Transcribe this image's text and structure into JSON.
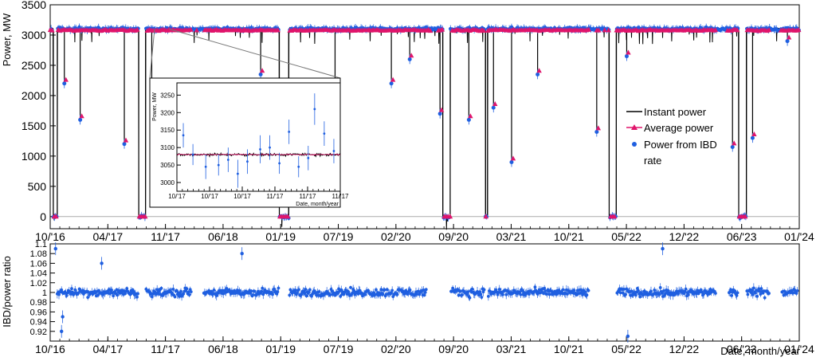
{
  "colors": {
    "instant": "#000000",
    "average": "#e0156b",
    "ibd": "#1f5fe0",
    "frame": "#000000",
    "zero_line": "#aaaaaa"
  },
  "chart_data": [
    {
      "type": "line",
      "name": "power-panel",
      "ylabel": "Power, MW",
      "xlim": [
        "2016-10-01",
        "2024-01-01"
      ],
      "ylim": [
        -200,
        3500
      ],
      "x_tick_labels": [
        "10/'16",
        "04/'17",
        "11/'17",
        "06/'18",
        "01/'19",
        "07/'19",
        "02/'20",
        "09/'20",
        "03/'21",
        "10/'21",
        "05/'22",
        "12/'22",
        "06/'23",
        "01/'24"
      ],
      "y_tick_labels": [
        "0",
        "500",
        "1000",
        "1500",
        "2000",
        "2500",
        "3000",
        "3500"
      ],
      "legend_position": "right-center",
      "series": [
        {
          "name": "Instant power",
          "key": "instant",
          "style": "line"
        },
        {
          "name": "Average power",
          "key": "average",
          "style": "triangle-markers"
        },
        {
          "name": "Power from IBD rate",
          "key": "ibd",
          "style": "points-with-errorbars"
        }
      ],
      "baseline_mw": 3100,
      "outages": [
        {
          "start": "2016-10-12",
          "end": "2016-10-26",
          "level_mw": 0
        },
        {
          "start": "2017-08-10",
          "end": "2017-09-03",
          "level_mw": 0
        },
        {
          "start": "2018-12-20",
          "end": "2019-01-22",
          "level_mw": 0
        },
        {
          "start": "2020-07-20",
          "end": "2020-08-15",
          "level_mw": 0
        },
        {
          "start": "2020-12-18",
          "end": "2020-12-25",
          "level_mw": 0
        },
        {
          "start": "2022-02-28",
          "end": "2022-03-25",
          "level_mw": 0
        },
        {
          "start": "2023-06-01",
          "end": "2023-06-28",
          "level_mw": 0
        }
      ],
      "dips": [
        {
          "date": "2016-11-20",
          "mw": 2200
        },
        {
          "date": "2017-01-15",
          "mw": 1600
        },
        {
          "date": "2017-06-20",
          "mw": 1200
        },
        {
          "date": "2017-09-25",
          "mw": 900
        },
        {
          "date": "2018-10-15",
          "mw": 2350
        },
        {
          "date": "2019-07-05",
          "mw": 2100
        },
        {
          "date": "2020-01-20",
          "mw": 2200
        },
        {
          "date": "2020-03-25",
          "mw": 2600
        },
        {
          "date": "2020-07-10",
          "mw": 1700
        },
        {
          "date": "2020-10-20",
          "mw": 1600
        },
        {
          "date": "2021-01-15",
          "mw": 1800
        },
        {
          "date": "2021-03-20",
          "mw": 900
        },
        {
          "date": "2021-06-20",
          "mw": 2350
        },
        {
          "date": "2022-01-15",
          "mw": 1400
        },
        {
          "date": "2022-05-01",
          "mw": 2650
        },
        {
          "date": "2023-05-10",
          "mw": 1150
        },
        {
          "date": "2023-07-20",
          "mw": 1300
        },
        {
          "date": "2023-11-20",
          "mw": 2900
        }
      ],
      "gaps": [
        {
          "start": "2018-02-15",
          "end": "2018-03-25"
        },
        {
          "start": "2020-05-25",
          "end": "2020-07-05"
        },
        {
          "start": "2021-12-20",
          "end": "2022-02-20"
        },
        {
          "start": "2023-03-15",
          "end": "2023-04-25"
        },
        {
          "start": "2023-09-20",
          "end": "2023-10-30"
        }
      ]
    },
    {
      "type": "line",
      "name": "inset-zoom",
      "ylabel": "Power, MW",
      "xlabel": "Date, month/year",
      "xlim": [
        "2017-10-05",
        "2017-11-25"
      ],
      "ylim": [
        2975,
        3285
      ],
      "x_tick_labels": [
        "10/'17",
        "10/'17",
        "10/'17",
        "11/'17",
        "11/'17",
        "11/'17"
      ],
      "y_tick_labels": [
        "3000",
        "3050",
        "3100",
        "3150",
        "3200",
        "3250"
      ],
      "instant_level_mw": 3080,
      "ibd_points": [
        {
          "x": "2017-10-07",
          "y": 3135,
          "err": 35
        },
        {
          "x": "2017-10-10",
          "y": 3080,
          "err": 30
        },
        {
          "x": "2017-10-14",
          "y": 3045,
          "err": 35
        },
        {
          "x": "2017-10-18",
          "y": 3050,
          "err": 30
        },
        {
          "x": "2017-10-21",
          "y": 3065,
          "err": 35
        },
        {
          "x": "2017-10-24",
          "y": 3025,
          "err": 40
        },
        {
          "x": "2017-10-27",
          "y": 3060,
          "err": 35
        },
        {
          "x": "2017-10-31",
          "y": 3095,
          "err": 40
        },
        {
          "x": "2017-11-03",
          "y": 3100,
          "err": 35
        },
        {
          "x": "2017-11-06",
          "y": 3055,
          "err": 30
        },
        {
          "x": "2017-11-09",
          "y": 3145,
          "err": 35
        },
        {
          "x": "2017-11-12",
          "y": 3045,
          "err": 30
        },
        {
          "x": "2017-11-15",
          "y": 3070,
          "err": 35
        },
        {
          "x": "2017-11-17",
          "y": 3210,
          "err": 45
        },
        {
          "x": "2017-11-20",
          "y": 3140,
          "err": 35
        },
        {
          "x": "2017-11-23",
          "y": 3090,
          "err": 35
        }
      ]
    },
    {
      "type": "scatter",
      "name": "ratio-panel",
      "ylabel": "IBD/power ratio",
      "xlabel": "Date, month/year",
      "xlim": [
        "2016-10-01",
        "2024-01-01"
      ],
      "ylim": [
        0.9,
        1.1
      ],
      "x_tick_labels": [
        "10/'16",
        "04/'17",
        "11/'17",
        "06/'18",
        "01/'19",
        "07/'19",
        "02/'20",
        "09/'20",
        "03/'21",
        "10/'21",
        "05/'22",
        "12/'22",
        "06/'23",
        "01/'24"
      ],
      "y_tick_labels": [
        "0.92",
        "0.94",
        "0.96",
        "0.98",
        "1",
        "1.02",
        "1.04",
        "1.06",
        "1.08",
        "1.1"
      ],
      "center": 1.0,
      "spread": 0.012,
      "segments": [
        {
          "start": "2016-10-26",
          "end": "2017-08-08"
        },
        {
          "start": "2017-09-05",
          "end": "2018-02-12"
        },
        {
          "start": "2018-03-28",
          "end": "2018-12-18"
        },
        {
          "start": "2019-01-25",
          "end": "2020-05-22"
        },
        {
          "start": "2020-08-18",
          "end": "2020-12-15"
        },
        {
          "start": "2020-12-28",
          "end": "2021-12-18"
        },
        {
          "start": "2022-03-28",
          "end": "2023-03-12"
        },
        {
          "start": "2023-04-28",
          "end": "2023-05-30"
        },
        {
          "start": "2023-06-30",
          "end": "2023-09-18"
        },
        {
          "start": "2023-11-01",
          "end": "2023-12-25"
        }
      ],
      "outliers": [
        {
          "x": "2016-10-20",
          "y": 1.09
        },
        {
          "x": "2016-11-10",
          "y": 0.92
        },
        {
          "x": "2016-11-14",
          "y": 0.95
        },
        {
          "x": "2018-08-10",
          "y": 1.08
        },
        {
          "x": "2022-05-05",
          "y": 0.91
        },
        {
          "x": "2022-09-05",
          "y": 1.09
        },
        {
          "x": "2017-04-01",
          "y": 1.06
        }
      ]
    }
  ]
}
